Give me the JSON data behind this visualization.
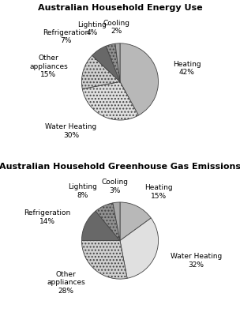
{
  "chart1": {
    "title": "Australian Household Energy Use",
    "labels": [
      "Heating",
      "Water Heating",
      "Other\nappliances",
      "Refrigeration",
      "Lighting",
      "Cooling"
    ],
    "values": [
      42,
      30,
      15,
      7,
      4,
      2
    ],
    "colors": [
      "#b8b8b8",
      "#e0e0e0",
      "#d0d0d0",
      "#686868",
      "#909090",
      "#a8a8a8"
    ],
    "hatches": [
      "",
      ".",
      ".",
      "",
      ".",
      ""
    ],
    "startangle": 90,
    "counterclock": false
  },
  "chart2": {
    "title": "Australian Household Greenhouse Gas Emissions",
    "labels": [
      "Heating",
      "Water Heating",
      "Other\nappliances",
      "Refrigeration",
      "Lighting",
      "Cooling"
    ],
    "values": [
      15,
      32,
      28,
      14,
      8,
      3
    ],
    "colors": [
      "#b8b8b8",
      "#e0e0e0",
      "#d0d0d0",
      "#686868",
      "#909090",
      "#a8a8a8"
    ],
    "hatches": [
      "",
      "",
      ".",
      "",
      ".",
      ""
    ],
    "startangle": 90,
    "counterclock": false
  },
  "bg_color": "#ffffff",
  "title_fontsize": 8,
  "label_fontsize": 6.5
}
